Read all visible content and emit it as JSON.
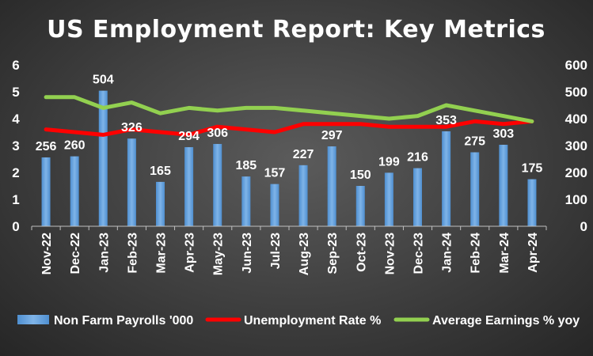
{
  "chart_data": {
    "type": "bar",
    "title": "US Employment Report: Key Metrics",
    "categories": [
      "Nov-22",
      "Dec-22",
      "Jan-23",
      "Feb-23",
      "Mar-23",
      "Apr-23",
      "May-23",
      "Jun-23",
      "Jul-23",
      "Aug-23",
      "Sep-23",
      "Oct-23",
      "Nov-23",
      "Dec-23",
      "Jan-24",
      "Feb-24",
      "Mar-24",
      "Apr-24"
    ],
    "series": [
      {
        "name": "Non Farm Payrolls '000",
        "type": "bar",
        "axis": "right",
        "color": "#5b9bd5",
        "values": [
          256,
          260,
          504,
          326,
          165,
          294,
          306,
          185,
          157,
          227,
          297,
          150,
          199,
          216,
          353,
          275,
          303,
          175
        ]
      },
      {
        "name": "Unemployment Rate %",
        "type": "line",
        "axis": "left",
        "color": "#ff0000",
        "values": [
          3.6,
          3.5,
          3.4,
          3.6,
          3.5,
          3.4,
          3.7,
          3.6,
          3.5,
          3.8,
          3.8,
          3.8,
          3.7,
          3.7,
          3.7,
          3.9,
          3.8,
          3.9
        ]
      },
      {
        "name": "Average Earnings % yoy",
        "type": "line",
        "axis": "left",
        "color": "#92d050",
        "values": [
          4.8,
          4.8,
          4.4,
          4.6,
          4.2,
          4.4,
          4.3,
          4.4,
          4.4,
          4.3,
          4.2,
          4.1,
          4.0,
          4.1,
          4.5,
          4.3,
          4.1,
          3.9
        ]
      }
    ],
    "y_left": {
      "min": 0,
      "max": 6,
      "ticks": [
        "0",
        "1",
        "2",
        "3",
        "4",
        "5",
        "6"
      ]
    },
    "y_right": {
      "min": 0,
      "max": 600,
      "ticks": [
        "0",
        "100",
        "200",
        "300",
        "400",
        "500",
        "600"
      ]
    },
    "data_labels_series": "Non Farm Payrolls '000",
    "grid": false,
    "legend": "bottom"
  }
}
